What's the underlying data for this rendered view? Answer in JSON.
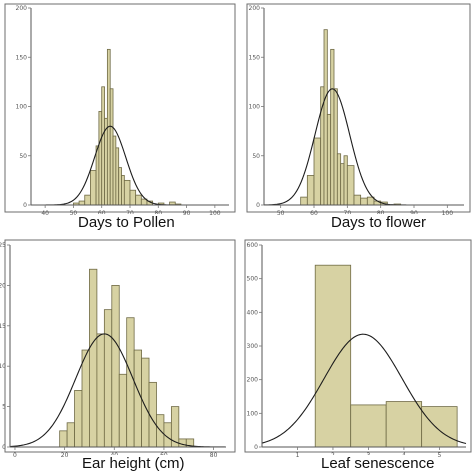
{
  "chart_data": [
    {
      "type": "bar",
      "xlabel": "Days to Pollen",
      "xlim": [
        35,
        105
      ],
      "ylim": [
        0,
        200
      ],
      "xticks": [
        40,
        50,
        60,
        70,
        80,
        90,
        100
      ],
      "yticks": [
        0,
        50,
        100,
        150,
        200
      ],
      "bins": [
        [
          50,
          52
        ],
        [
          52,
          54
        ],
        [
          54,
          56
        ],
        [
          56,
          58
        ],
        [
          58,
          59
        ],
        [
          59,
          60
        ],
        [
          60,
          61
        ],
        [
          61,
          62
        ],
        [
          62,
          63
        ],
        [
          63,
          64
        ],
        [
          64,
          65
        ],
        [
          65,
          66
        ],
        [
          66,
          67
        ],
        [
          67,
          68
        ],
        [
          68,
          70
        ],
        [
          70,
          72
        ],
        [
          72,
          74
        ],
        [
          74,
          76
        ],
        [
          76,
          78
        ],
        [
          80,
          82
        ],
        [
          84,
          86
        ],
        [
          86,
          88
        ]
      ],
      "values": [
        2,
        4,
        10,
        35,
        60,
        95,
        120,
        88,
        158,
        118,
        70,
        58,
        38,
        30,
        25,
        15,
        10,
        6,
        4,
        2,
        3,
        1
      ],
      "normal_curve": {
        "mean": 63,
        "sd": 5.5,
        "peak": 80
      }
    },
    {
      "type": "bar",
      "xlabel": "Days to flower",
      "xlim": [
        45,
        105
      ],
      "ylim": [
        0,
        200
      ],
      "xticks": [
        50,
        60,
        70,
        80,
        90,
        100
      ],
      "yticks": [
        0,
        50,
        100,
        150,
        200
      ],
      "bins": [
        [
          56,
          58
        ],
        [
          58,
          60
        ],
        [
          60,
          62
        ],
        [
          62,
          63
        ],
        [
          63,
          64
        ],
        [
          64,
          65
        ],
        [
          65,
          66
        ],
        [
          66,
          67
        ],
        [
          67,
          68
        ],
        [
          68,
          69
        ],
        [
          69,
          70
        ],
        [
          70,
          72
        ],
        [
          72,
          74
        ],
        [
          74,
          76
        ],
        [
          76,
          78
        ],
        [
          78,
          80
        ],
        [
          80,
          82
        ],
        [
          84,
          86
        ]
      ],
      "values": [
        8,
        30,
        68,
        120,
        178,
        92,
        158,
        118,
        52,
        42,
        50,
        40,
        10,
        7,
        8,
        4,
        3,
        1
      ],
      "normal_curve": {
        "mean": 65.5,
        "sd": 5.2,
        "peak": 118
      }
    },
    {
      "type": "bar",
      "xlabel": "Ear height (cm)",
      "xlim": [
        -2,
        85
      ],
      "ylim": [
        0,
        25
      ],
      "xticks": [
        0,
        20,
        40,
        60,
        80
      ],
      "yticks": [
        0,
        5,
        10,
        15,
        20,
        25
      ],
      "bins": [
        [
          18,
          21
        ],
        [
          21,
          24
        ],
        [
          24,
          27
        ],
        [
          27,
          30
        ],
        [
          30,
          33
        ],
        [
          33,
          36
        ],
        [
          36,
          39
        ],
        [
          39,
          42
        ],
        [
          42,
          45
        ],
        [
          45,
          48
        ],
        [
          48,
          51
        ],
        [
          51,
          54
        ],
        [
          54,
          57
        ],
        [
          57,
          60
        ],
        [
          60,
          63
        ],
        [
          63,
          66
        ],
        [
          66,
          69
        ],
        [
          69,
          72
        ]
      ],
      "values": [
        2,
        3,
        7,
        12,
        22,
        14,
        17,
        20,
        9,
        16,
        12,
        11,
        8,
        4,
        3,
        5,
        1,
        1
      ],
      "normal_curve": {
        "mean": 36,
        "sd": 11.5,
        "peak": 14
      }
    },
    {
      "type": "bar",
      "xlabel": "Leaf senescence",
      "xlim": [
        0,
        5.75
      ],
      "ylim": [
        0,
        600
      ],
      "xticks": [
        1,
        2,
        3,
        4,
        5
      ],
      "yticks": [
        0,
        100,
        200,
        300,
        400,
        500,
        600
      ],
      "bins": [
        [
          1.5,
          2.5
        ],
        [
          2.5,
          3.5
        ],
        [
          3.5,
          4.5
        ],
        [
          4.5,
          5.5
        ]
      ],
      "values": [
        540,
        125,
        135,
        120
      ],
      "normal_curve": {
        "mean": 2.85,
        "sd": 1.1,
        "peak": 335
      }
    }
  ]
}
